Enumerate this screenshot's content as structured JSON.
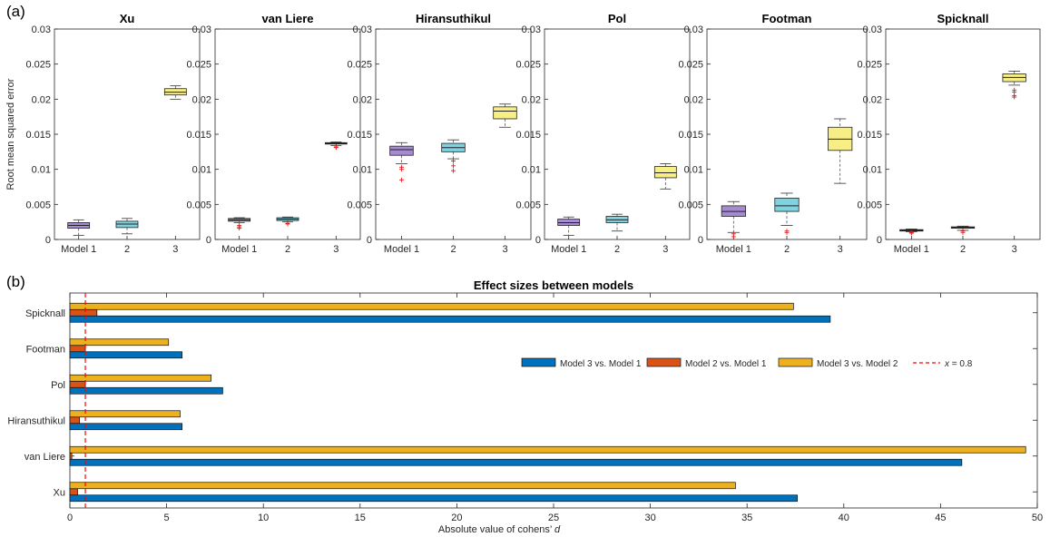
{
  "panel_a_label": "(a)",
  "panel_b_label": "(b)",
  "chart_data": [
    {
      "type": "box",
      "title": "Xu",
      "ylabel": "Root mean squared error",
      "categories": [
        "Model 1",
        "2",
        "3"
      ],
      "ylim": [
        0,
        0.03
      ],
      "yticks": [
        "0",
        "0.005",
        "0.01",
        "0.015",
        "0.02",
        "0.025",
        "0.03"
      ],
      "boxes": [
        {
          "color": "#a68bd1",
          "whislo": 0.0006,
          "q1": 0.0016,
          "med": 0.002,
          "q3": 0.0024,
          "whishi": 0.0028,
          "outliers": []
        },
        {
          "color": "#7fd3e0",
          "whislo": 0.0008,
          "q1": 0.0017,
          "med": 0.0022,
          "q3": 0.0026,
          "whishi": 0.003,
          "outliers": []
        },
        {
          "color": "#f7ef86",
          "whislo": 0.02,
          "q1": 0.0206,
          "med": 0.021,
          "q3": 0.0215,
          "whishi": 0.0219,
          "outliers": []
        }
      ]
    },
    {
      "type": "box",
      "title": "van Liere",
      "ylabel": "",
      "categories": [
        "Model 1",
        "2",
        "3"
      ],
      "ylim": [
        0,
        0.03
      ],
      "yticks": [
        "0",
        "0.005",
        "0.01",
        "0.015",
        "0.02",
        "0.025",
        "0.03"
      ],
      "boxes": [
        {
          "color": "#a68bd1",
          "whislo": 0.0024,
          "q1": 0.0026,
          "med": 0.0028,
          "q3": 0.003,
          "whishi": 0.0031,
          "outliers": [
            0.002,
            0.0018,
            0.0016
          ]
        },
        {
          "color": "#7fd3e0",
          "whislo": 0.0025,
          "q1": 0.0027,
          "med": 0.0029,
          "q3": 0.0031,
          "whishi": 0.0032,
          "outliers": [
            0.0023,
            0.0022
          ]
        },
        {
          "color": "#f7ef86",
          "whislo": 0.0134,
          "q1": 0.0136,
          "med": 0.0137,
          "q3": 0.0138,
          "whishi": 0.0139,
          "outliers": [
            0.0132,
            0.0131
          ]
        }
      ]
    },
    {
      "type": "box",
      "title": "Hiransuthikul",
      "ylabel": "",
      "categories": [
        "Model 1",
        "2",
        "3"
      ],
      "ylim": [
        0,
        0.03
      ],
      "yticks": [
        "0",
        "0.005",
        "0.01",
        "0.015",
        "0.02",
        "0.025",
        "0.03"
      ],
      "boxes": [
        {
          "color": "#a68bd1",
          "whislo": 0.0108,
          "q1": 0.012,
          "med": 0.0128,
          "q3": 0.0133,
          "whishi": 0.0138,
          "outliers": [
            0.0103,
            0.01,
            0.0085
          ]
        },
        {
          "color": "#7fd3e0",
          "whislo": 0.0115,
          "q1": 0.0125,
          "med": 0.0131,
          "q3": 0.0137,
          "whishi": 0.0142,
          "outliers": [
            0.0112,
            0.0105,
            0.0098
          ]
        },
        {
          "color": "#f7ef86",
          "whislo": 0.016,
          "q1": 0.0172,
          "med": 0.0183,
          "q3": 0.0189,
          "whishi": 0.0193,
          "outliers": []
        }
      ]
    },
    {
      "type": "box",
      "title": "Pol",
      "ylabel": "",
      "categories": [
        "Model 1",
        "2",
        "3"
      ],
      "ylim": [
        0,
        0.03
      ],
      "yticks": [
        "0",
        "0.005",
        "0.01",
        "0.015",
        "0.02",
        "0.025",
        "0.03"
      ],
      "boxes": [
        {
          "color": "#a68bd1",
          "whislo": 0.0006,
          "q1": 0.002,
          "med": 0.0024,
          "q3": 0.0029,
          "whishi": 0.0032,
          "outliers": []
        },
        {
          "color": "#7fd3e0",
          "whislo": 0.0012,
          "q1": 0.0024,
          "med": 0.0028,
          "q3": 0.0033,
          "whishi": 0.0036,
          "outliers": []
        },
        {
          "color": "#f7ef86",
          "whislo": 0.0072,
          "q1": 0.0088,
          "med": 0.0095,
          "q3": 0.0104,
          "whishi": 0.0108,
          "outliers": []
        }
      ]
    },
    {
      "type": "box",
      "title": "Footman",
      "ylabel": "",
      "categories": [
        "Model 1",
        "2",
        "3"
      ],
      "ylim": [
        0,
        0.03
      ],
      "yticks": [
        "0",
        "0.005",
        "0.01",
        "0.015",
        "0.02",
        "0.025",
        "0.03"
      ],
      "boxes": [
        {
          "color": "#a68bd1",
          "whislo": 0.001,
          "q1": 0.0033,
          "med": 0.004,
          "q3": 0.0048,
          "whishi": 0.0054,
          "outliers": [
            0.0008,
            0.0004
          ]
        },
        {
          "color": "#7fd3e0",
          "whislo": 0.002,
          "q1": 0.004,
          "med": 0.0048,
          "q3": 0.0059,
          "whishi": 0.0066,
          "outliers": [
            0.0012,
            0.001
          ]
        },
        {
          "color": "#f7ef86",
          "whislo": 0.008,
          "q1": 0.0127,
          "med": 0.0143,
          "q3": 0.016,
          "whishi": 0.0172,
          "outliers": []
        }
      ]
    },
    {
      "type": "box",
      "title": "Spicknall",
      "ylabel": "",
      "categories": [
        "Model 1",
        "2",
        "3"
      ],
      "ylim": [
        0,
        0.03
      ],
      "yticks": [
        "0",
        "0.005",
        "0.01",
        "0.015",
        "0.02",
        "0.025",
        "0.03"
      ],
      "boxes": [
        {
          "color": "#a68bd1",
          "whislo": 0.0011,
          "q1": 0.0012,
          "med": 0.0013,
          "q3": 0.0014,
          "whishi": 0.0015,
          "outliers": [
            0.001,
            0.0009
          ]
        },
        {
          "color": "#7fd3e0",
          "whislo": 0.0013,
          "q1": 0.0016,
          "med": 0.0017,
          "q3": 0.0018,
          "whishi": 0.0019,
          "outliers": [
            0.0012,
            0.001
          ]
        },
        {
          "color": "#f7ef86",
          "whislo": 0.022,
          "q1": 0.0225,
          "med": 0.0231,
          "q3": 0.0236,
          "whishi": 0.024,
          "outliers": [
            0.0213,
            0.021,
            0.0205,
            0.0203
          ]
        }
      ]
    },
    {
      "type": "bar",
      "orientation": "horizontal",
      "title": "Effect sizes between models",
      "xlabel_prefix": "Absolute value of cohens’ ",
      "xlabel_var": "d",
      "categories": [
        "Xu",
        "van Liere",
        "Hiransuthikul",
        "Pol",
        "Footman",
        "Spicknall"
      ],
      "xlim": [
        0,
        50
      ],
      "xticks": [
        "0",
        "5",
        "10",
        "15",
        "20",
        "25",
        "30",
        "35",
        "40",
        "45",
        "50"
      ],
      "series": [
        {
          "name": "Model 3 vs. Model 1",
          "color": "#0072bd",
          "values": [
            37.6,
            46.1,
            5.8,
            7.9,
            5.8,
            39.3
          ]
        },
        {
          "name": "Model 2 vs. Model 1",
          "color": "#d95319",
          "values": [
            0.4,
            0.1,
            0.5,
            0.8,
            0.8,
            1.4
          ]
        },
        {
          "name": "Model 3 vs. Model 2",
          "color": "#edb120",
          "values": [
            34.4,
            49.4,
            5.7,
            7.3,
            5.1,
            37.4
          ]
        }
      ],
      "reference_line": {
        "value": 0.8,
        "color": "#ff0000",
        "label_var": "x",
        "label_rest": " = 0.8"
      },
      "legend_position": "right"
    }
  ]
}
